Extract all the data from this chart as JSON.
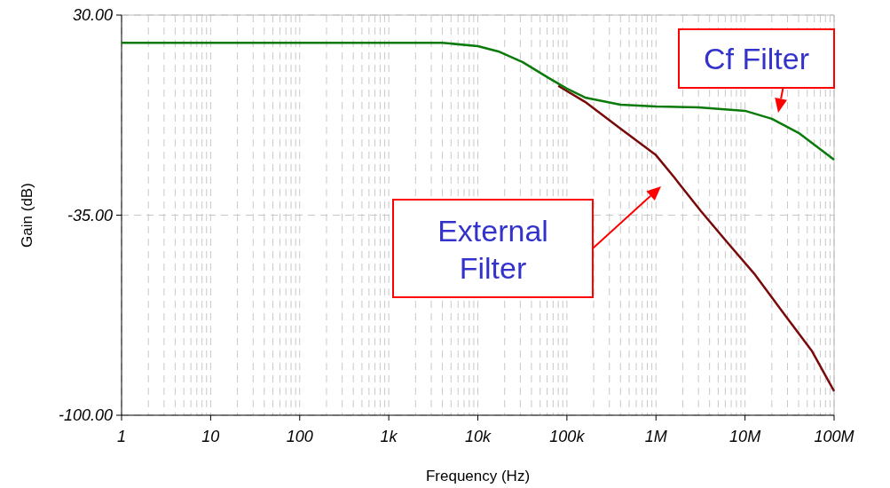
{
  "chart_data": {
    "type": "line",
    "xlabel": "Frequency (Hz)",
    "ylabel": "Gain (dB)",
    "log": "x",
    "grid": true,
    "xlim": [
      1,
      100000000
    ],
    "xticks": [
      1,
      10,
      100,
      {
        "value": 1000,
        "label": "1k"
      },
      {
        "value": 10000,
        "label": "10k"
      },
      {
        "value": 100000,
        "label": "100k"
      },
      {
        "value": 1000000,
        "label": "1M"
      },
      {
        "value": 10000000,
        "label": "10M"
      },
      {
        "value": 100000000,
        "label": "100M"
      }
    ],
    "ylim": [
      -100,
      30
    ],
    "yticks": [
      {
        "value": -100,
        "label": "-100.00"
      },
      {
        "value": -35,
        "label": "-35.00"
      },
      {
        "value": 30,
        "label": "30.00"
      }
    ],
    "x": [
      1,
      10,
      100,
      1000,
      4000,
      10000,
      17000,
      32000,
      63000,
      100000,
      160000,
      400000,
      1000000,
      3000000,
      10000000,
      20000000,
      40000000,
      100000000
    ],
    "series": [
      {
        "color": "#7a0a0a",
        "x": [
          80000,
          160000,
          400000,
          1000000,
          1600000,
          3200000,
          6300000,
          12600000,
          28000000,
          56000000,
          100000000
        ],
        "values": [
          7,
          1.8,
          -6.9,
          -15.5,
          -22.7,
          -33.7,
          -43.8,
          -53.9,
          -67.4,
          -79,
          -92.2
        ]
      },
      {
        "color": "#0a7a0a",
        "values": [
          21,
          21,
          21,
          21,
          21,
          19.9,
          18.2,
          14.7,
          9.5,
          6.1,
          3.2,
          0.9,
          0.3,
          0,
          -1.1,
          -3.7,
          -8.3,
          -17
        ]
      }
    ],
    "annotations": [
      "Cf Filter",
      "External Filter"
    ]
  }
}
